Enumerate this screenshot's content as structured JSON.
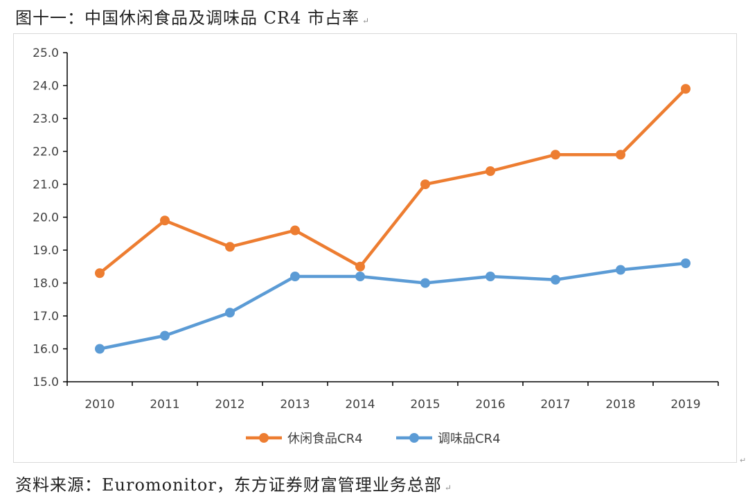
{
  "caption": {
    "title": "图十一：中国休闲食品及调味品 CR4 市占率",
    "source": "资料来源：Euromonitor，东方证券财富管理业务总部",
    "return_mark": "↵"
  },
  "chart_data": {
    "type": "line",
    "title": "",
    "xlabel": "",
    "ylabel": "",
    "categories": [
      "2010",
      "2011",
      "2012",
      "2013",
      "2014",
      "2015",
      "2016",
      "2017",
      "2018",
      "2019"
    ],
    "ylim": [
      15.0,
      25.0
    ],
    "ytick_step": 1.0,
    "ytick_labels": [
      "15.0",
      "16.0",
      "17.0",
      "18.0",
      "19.0",
      "20.0",
      "21.0",
      "22.0",
      "23.0",
      "24.0",
      "25.0"
    ],
    "grid": false,
    "legend_position": "bottom",
    "series": [
      {
        "name": "休闲食品CR4",
        "color": "#ED7D31",
        "values": [
          18.3,
          19.9,
          19.1,
          19.6,
          18.5,
          21.0,
          21.4,
          21.9,
          21.9,
          23.9
        ]
      },
      {
        "name": "调味品CR4",
        "color": "#5B9BD5",
        "values": [
          16.0,
          16.4,
          17.1,
          18.2,
          18.2,
          18.0,
          18.2,
          18.1,
          18.4,
          18.6
        ]
      }
    ]
  }
}
